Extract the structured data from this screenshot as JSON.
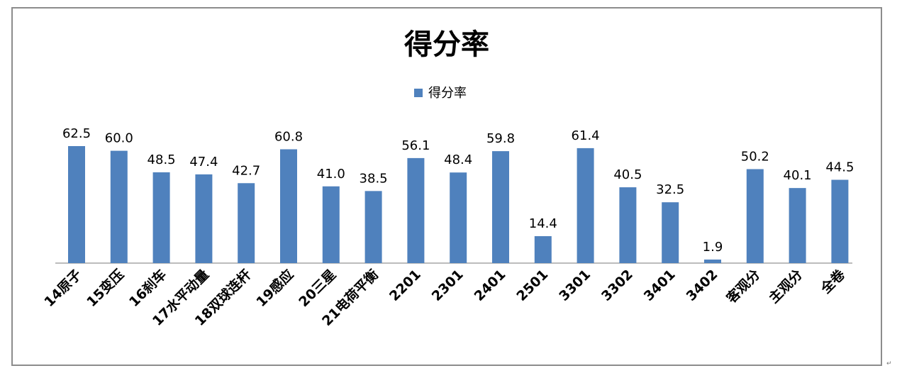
{
  "chart_data": {
    "type": "bar",
    "title": "得分率",
    "legend": {
      "position": "top-center",
      "entries": [
        "得分率"
      ]
    },
    "categories": [
      "14原子",
      "15变压",
      "16刹车",
      "17水平动量",
      "18双球连杆",
      "19感应",
      "20三星",
      "21电荷平衡",
      "2201",
      "2301",
      "2401",
      "2501",
      "3301",
      "3302",
      "3401",
      "3402",
      "客观分",
      "主观分",
      "全卷"
    ],
    "series": [
      {
        "name": "得分率",
        "values": [
          62.5,
          60.0,
          48.5,
          47.4,
          42.7,
          60.8,
          41.0,
          38.5,
          56.1,
          48.4,
          59.8,
          14.4,
          61.4,
          40.5,
          32.5,
          1.9,
          50.2,
          40.1,
          44.5
        ],
        "labels": [
          "62.5",
          "60.0",
          "48.5",
          "47.4",
          "42.7",
          "60.8",
          "41.0",
          "38.5",
          "56.1",
          "48.4",
          "59.8",
          "14.4",
          "61.4",
          "40.5",
          "32.5",
          "1.9",
          "50.2",
          "40.1",
          "44.5"
        ],
        "color": "#4f81bd"
      }
    ],
    "ylim": [
      0,
      62.5
    ],
    "grid": false,
    "colors": {
      "bar": "#4f81bd",
      "axis": "#a6a6a6",
      "frame": "#8c8c8c",
      "text": "#000000"
    }
  }
}
